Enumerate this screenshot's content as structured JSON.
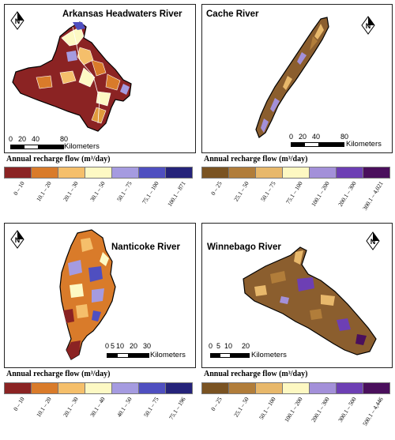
{
  "panels": {
    "arkansas": {
      "title": "Arkansas Headwaters River",
      "scale_ticks": [
        "0",
        "20",
        "40",
        "80"
      ],
      "scale_unit": "Kilometers"
    },
    "cache": {
      "title": "Cache River",
      "scale_ticks": [
        "0",
        "20",
        "40",
        "80"
      ],
      "scale_unit": "Kilometers"
    },
    "nanticoke": {
      "title": "Nanticoke River",
      "scale_ticks": [
        "0",
        "5",
        "10",
        "20",
        "30"
      ],
      "scale_unit": "Kilometers"
    },
    "winnebago": {
      "title": "Winnebago River",
      "scale_ticks": [
        "0",
        "5",
        "10",
        "20"
      ],
      "scale_unit": "Kilometers"
    }
  },
  "legends": {
    "arkansas": {
      "title": "Annual recharge flow (m³/day)",
      "classes": [
        "0 – 10",
        "10.1 – 20",
        "20.1 – 30",
        "30.1 – 50",
        "50.1 – 75",
        "75.1 – 100",
        "100.1 – 871"
      ],
      "colors": [
        "#8b2323",
        "#d97b2a",
        "#f5bf6b",
        "#fdf9c4",
        "#a59be0",
        "#4f4fc0",
        "#25237a"
      ]
    },
    "cache": {
      "title": "Annual recharge flow (m³/day)",
      "classes": [
        "0 – 25",
        "25.1 – 50",
        "50.1 – 75",
        "75.1 – 100",
        "100.1 – 200",
        "200.1 – 300",
        "300.1 – 4,021"
      ],
      "colors": [
        "#7a5322",
        "#b17d3a",
        "#e8b86b",
        "#fdf8c2",
        "#a390d9",
        "#6d3fb4",
        "#4a0f5c"
      ]
    },
    "nanticoke": {
      "title": "Annual recharge flow (m³/day)",
      "classes": [
        "0 – 10",
        "10.1 – 20",
        "20.1 – 30",
        "30.1 – 40",
        "40.1 – 50",
        "50.1 – 75",
        "75.1 – 196"
      ],
      "colors": [
        "#8b2323",
        "#d97b2a",
        "#f5bf6b",
        "#fdf9c4",
        "#a59be0",
        "#4f4fc0",
        "#25237a"
      ]
    },
    "winnebago": {
      "title": "Annual recharge flow (m³/day)",
      "classes": [
        "0 – 25",
        "25.1 – 50",
        "50.1 – 100",
        "100.1 – 200",
        "200.1 – 300",
        "300.1 – 500",
        "500.1 – 4,446"
      ],
      "colors": [
        "#7a5322",
        "#b17d3a",
        "#e8b86b",
        "#fdf8c2",
        "#a390d9",
        "#6d3fb4",
        "#4a0f5c"
      ]
    }
  },
  "colors": {
    "map_brown": "#8b5e2e",
    "map_orange": "#e09a3c",
    "map_red": "#8b2323",
    "map_purple": "#6a5acd"
  }
}
